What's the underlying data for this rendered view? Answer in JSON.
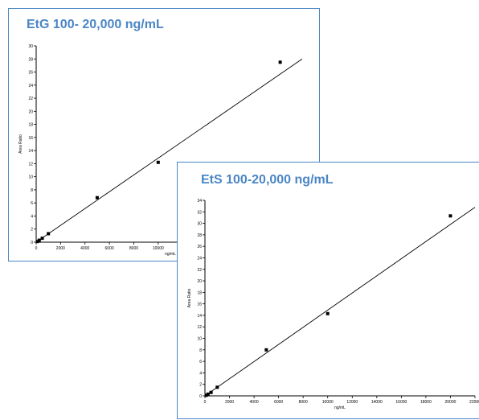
{
  "chart_data": [
    {
      "type": "scatter",
      "title": "EtG 100- 20,000 ng/mL",
      "xlabel": "ng/mL",
      "ylabel": "Area Ratio",
      "xlim": [
        0,
        22000
      ],
      "ylim": [
        0,
        30
      ],
      "xticks": [
        0,
        2000,
        4000,
        6000,
        8000,
        10000,
        12000,
        14000,
        16000,
        18000,
        20000,
        22000
      ],
      "yticks": [
        0,
        2,
        4,
        6,
        8,
        10,
        12,
        14,
        16,
        18,
        20,
        22,
        24,
        26,
        28,
        30
      ],
      "series": [
        {
          "x": [
            100,
            250,
            500,
            1000,
            5000,
            10000,
            20000
          ],
          "y": [
            0.1,
            0.3,
            0.6,
            1.3,
            6.8,
            12.2,
            27.5
          ]
        }
      ],
      "fit_line": {
        "x": [
          0,
          21800
        ],
        "y": [
          0,
          28.0
        ]
      },
      "colors": {
        "marker": "#000000",
        "line": "#000000",
        "frame": "#4a86c5"
      }
    },
    {
      "type": "scatter",
      "title": "EtS 100-20,000 ng/mL",
      "xlabel": "ng/mL",
      "ylabel": "Area Ratio",
      "xlim": [
        0,
        22000
      ],
      "ylim": [
        0,
        34
      ],
      "xticks": [
        0,
        2000,
        4000,
        6000,
        8000,
        10000,
        12000,
        14000,
        16000,
        18000,
        20000,
        22000
      ],
      "yticks": [
        0,
        2,
        4,
        6,
        8,
        10,
        12,
        14,
        16,
        18,
        20,
        22,
        24,
        26,
        28,
        30,
        32,
        34
      ],
      "series": [
        {
          "x": [
            100,
            250,
            500,
            1000,
            5000,
            10000,
            20000
          ],
          "y": [
            0.1,
            0.3,
            0.6,
            1.5,
            8.0,
            14.3,
            31.3
          ]
        }
      ],
      "fit_line": {
        "x": [
          0,
          22000
        ],
        "y": [
          0,
          32.8
        ]
      },
      "colors": {
        "marker": "#000000",
        "line": "#000000",
        "frame": "#4a86c5"
      }
    }
  ]
}
